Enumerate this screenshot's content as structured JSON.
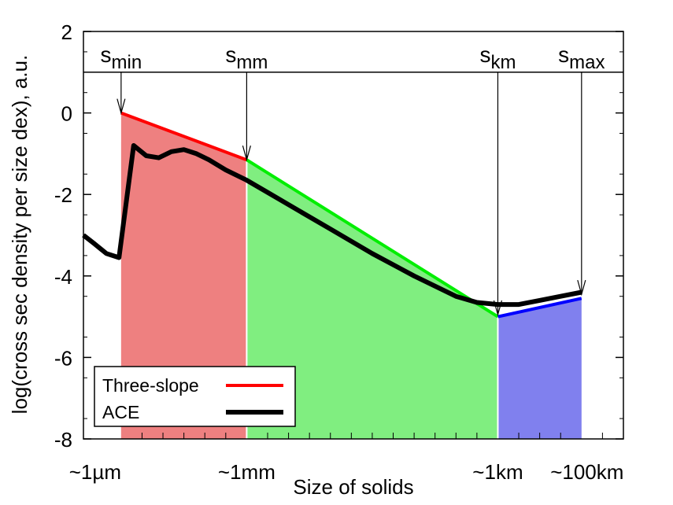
{
  "chart_data": {
    "type": "line",
    "title": "",
    "xlabel": "Size of solids",
    "ylabel": "log(cross sec density per size dex), a.u.",
    "xlim": [
      -6.9,
      6.0
    ],
    "ylim": [
      -8,
      2
    ],
    "yticks": [
      2,
      0,
      -2,
      -4,
      -6,
      -8
    ],
    "ytick_labels": [
      "2",
      "0",
      "-2",
      "-4",
      "-6",
      "-8"
    ],
    "xtick_labels": [
      {
        "x": -6,
        "label": "~1µm"
      },
      {
        "x": -3,
        "label": "~1mm"
      },
      {
        "x": 3,
        "label": "~1km"
      },
      {
        "x": 5,
        "label": "~100km"
      }
    ],
    "minor_xticks": [
      -5.5,
      -5,
      -4.5,
      -4,
      -3.5,
      -2.5,
      -2,
      -1.5,
      -1,
      -0.5,
      0,
      0.5,
      1,
      1.5,
      2,
      2.5,
      3.5,
      4,
      4.5,
      5.5
    ],
    "regions": [
      {
        "x0": -6.0,
        "x1": -3.0,
        "color": "#ee8080"
      },
      {
        "x0": -3.0,
        "x1": 3.0,
        "color": "#80ee80"
      },
      {
        "x0": 3.0,
        "x1": 5.0,
        "color": "#8080ee"
      }
    ],
    "markers": [
      {
        "label": "s",
        "sub": "min",
        "x": -6.0,
        "y": 0.0
      },
      {
        "label": "s",
        "sub": "mm",
        "x": -3.0,
        "y": -1.15
      },
      {
        "label": "s",
        "sub": "km",
        "x": 3.0,
        "y": -4.95
      },
      {
        "label": "s",
        "sub": "max",
        "x": 5.0,
        "y": -4.45
      }
    ],
    "series": [
      {
        "name": "Three-slope",
        "color": "#ff0000",
        "x": [
          -6.0,
          -3.0
        ],
        "y": [
          0.0,
          -1.15
        ]
      },
      {
        "name": "",
        "color": "#00ee00",
        "x": [
          -3.0,
          3.0
        ],
        "y": [
          -1.15,
          -5.0
        ]
      },
      {
        "name": "",
        "color": "#0000ff",
        "x": [
          3.0,
          5.0
        ],
        "y": [
          -5.0,
          -4.55
        ]
      },
      {
        "name": "ACE",
        "color": "#000000",
        "x": [
          -6.9,
          -6.65,
          -6.35,
          -6.05,
          -5.7,
          -5.4,
          -5.1,
          -4.8,
          -4.5,
          -4.2,
          -3.9,
          -3.5,
          -3.0,
          -2.5,
          -2.0,
          -1.0,
          0.0,
          1.0,
          2.0,
          2.5,
          3.0,
          3.5,
          4.0,
          4.5,
          5.0
        ],
        "y": [
          -3.0,
          -3.2,
          -3.45,
          -3.55,
          -0.8,
          -1.05,
          -1.1,
          -0.95,
          -0.9,
          -1.0,
          -1.15,
          -1.4,
          -1.65,
          -1.95,
          -2.25,
          -2.85,
          -3.45,
          -4.0,
          -4.5,
          -4.65,
          -4.7,
          -4.7,
          -4.6,
          -4.5,
          -4.4
        ]
      }
    ],
    "legend": {
      "position": "bottom-left",
      "entries": [
        {
          "label": "Three-slope",
          "color": "#ff0000"
        },
        {
          "label": "ACE",
          "color": "#000000"
        }
      ]
    }
  }
}
